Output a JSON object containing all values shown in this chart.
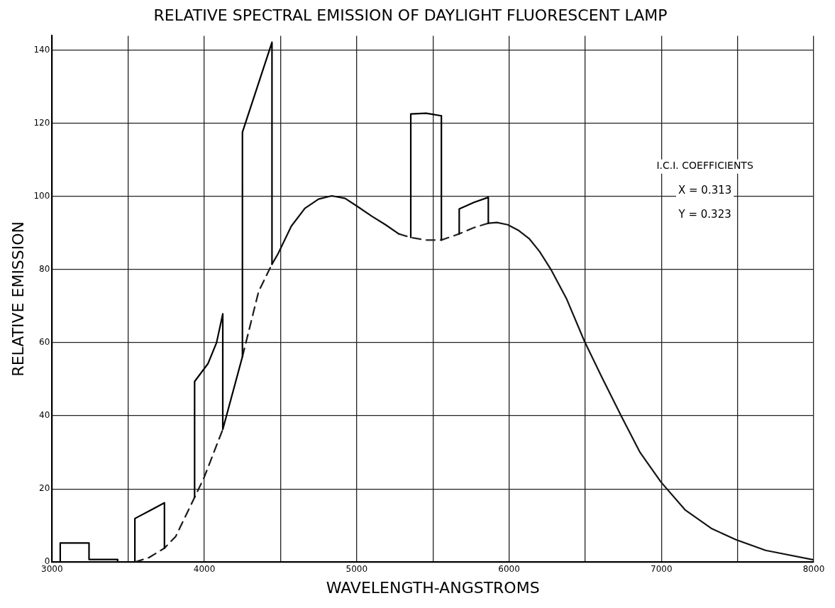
{
  "chart_data": {
    "type": "line",
    "title": "RELATIVE SPECTRAL EMISSION OF DAYLIGHT FLUORESCENT LAMP",
    "xlabel": "WAVELENGTH-ANGSTROMS",
    "ylabel": "RELATIVE EMISSION",
    "xlim": [
      3000,
      8000
    ],
    "xticks": [
      3000,
      {
        "value": 3500,
        "label": null
      },
      4000,
      {
        "value": 4500,
        "label": null
      },
      5000,
      {
        "value": 5500,
        "label": null
      },
      6000,
      {
        "value": 6500,
        "label": null
      },
      7000,
      {
        "value": 7500,
        "label": null
      },
      8000
    ],
    "ylim": [
      0,
      144
    ],
    "yticks": [
      0,
      20,
      40,
      60,
      80,
      100,
      120,
      140
    ],
    "grid": true,
    "legend": false,
    "marker": "none",
    "annotations": [
      "I.C.I. COEFFICIENTS",
      "X = 0.313",
      "Y = 0.323"
    ],
    "series": [
      {
        "color": "#000000",
        "line_style": "solid",
        "x": [
          3054,
          3054,
          3243,
          3243,
          3431,
          3431,
          3490,
          3544,
          3544,
          3640,
          3738,
          3738,
          3840,
          3936,
          3936,
          4024,
          4080,
          4121,
          4121,
          4250,
          4250,
          4444,
          4444,
          4900,
          5355,
          5355,
          5456,
          5556,
          5556,
          5610,
          5673,
          5673,
          5770,
          5864,
          5864
        ],
        "values": [
          0,
          5.2,
          5.2,
          0.7,
          0.7,
          0,
          null,
          0,
          11.9,
          14,
          16.2,
          3.8,
          null,
          17.7,
          49.4,
          54.3,
          60,
          67.9,
          36.3,
          56.2,
          117.6,
          142.2,
          81.5,
          null,
          88.8,
          122.6,
          122.8,
          122.1,
          88.1,
          null,
          89.8,
          96.6,
          98.4,
          99.8,
          92.7
        ]
      },
      {
        "color": "#1a1a1a",
        "line_style": "dashed",
        "x": [
          3544,
          3636,
          3738,
          3812,
          3936,
          3998,
          4121,
          4180,
          4250,
          4356,
          4444
        ],
        "values": [
          0,
          1.2,
          3.8,
          7.0,
          17.7,
          23.1,
          36.3,
          null,
          56.2,
          74,
          81.5
        ]
      },
      {
        "color": "#0d0d0d",
        "line_style": "solid",
        "x": [
          4444,
          4483,
          4571,
          4660,
          4750,
          4836,
          4924,
          5012,
          5100,
          5189,
          5276
        ],
        "values": [
          81.5,
          84.3,
          91.9,
          96.8,
          99.3,
          100.2,
          99.5,
          97.1,
          94.6,
          92.3,
          89.8
        ]
      },
      {
        "color": "#262626",
        "line_style": "dashed",
        "x": [
          5276,
          5355,
          5452,
          5556,
          5673,
          5770,
          5864
        ],
        "values": [
          89.8,
          88.8,
          88.1,
          88.1,
          89.8,
          91.5,
          92.7
        ]
      },
      {
        "color": "#141414",
        "line_style": "solid",
        "x": [
          5864,
          5921,
          5991,
          6060,
          6132,
          6200,
          6273,
          6379,
          6494,
          6610,
          6732,
          6860,
          6997,
          7155,
          7332,
          7490,
          7684,
          8000
        ],
        "values": [
          92.7,
          92.9,
          92.3,
          90.8,
          88.5,
          85,
          80.2,
          71.9,
          60.5,
          50.5,
          40.3,
          30,
          21.9,
          14.3,
          9.1,
          6.1,
          3.2,
          0.6
        ]
      }
    ]
  }
}
